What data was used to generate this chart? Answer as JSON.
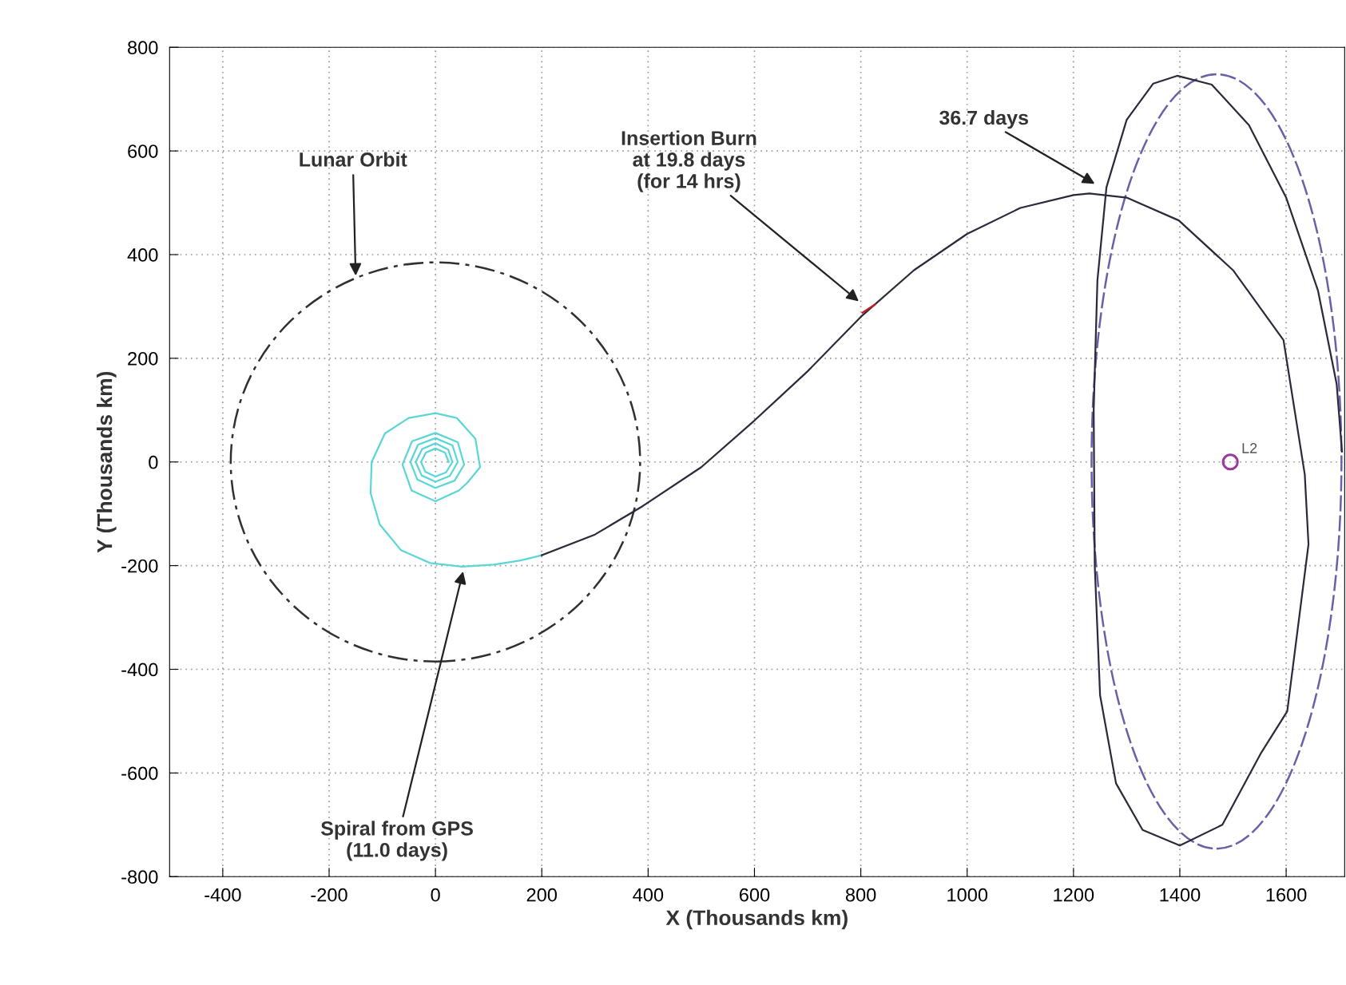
{
  "chart_data": {
    "type": "line",
    "xlabel": "X (Thousands km)",
    "ylabel": "Y (Thousands km)",
    "xlim": [
      -500,
      1710
    ],
    "ylim": [
      -800,
      800
    ],
    "xticks": [
      -400,
      -200,
      0,
      200,
      400,
      600,
      800,
      1000,
      1200,
      1400,
      1600
    ],
    "yticks": [
      -800,
      -600,
      -400,
      -200,
      0,
      200,
      400,
      600,
      800
    ],
    "grid": true,
    "series": [
      {
        "color": "#5ad6d6",
        "line_style": "solid",
        "x": [
          25,
          18,
          0,
          -18,
          -27,
          -19,
          0,
          20,
          32,
          24,
          0,
          -25,
          -37,
          -26,
          0,
          27,
          42,
          32,
          0,
          -33,
          -47,
          -34,
          0,
          36,
          54,
          42,
          0,
          -44,
          -62,
          -45,
          0,
          44,
          60,
          84,
          75,
          40,
          0,
          -50,
          -95,
          -120,
          -122,
          -105,
          -65,
          -10,
          50,
          110,
          160,
          200
        ],
        "values": [
          0,
          18,
          26,
          18,
          0,
          -19,
          -28,
          -20,
          0,
          24,
          36,
          25,
          0,
          -26,
          -38,
          -27,
          0,
          32,
          46,
          33,
          0,
          -34,
          -50,
          -36,
          -5,
          38,
          56,
          40,
          -5,
          -55,
          -76,
          -55,
          -40,
          -10,
          45,
          85,
          94,
          85,
          55,
          0,
          -60,
          -120,
          -170,
          -195,
          -202,
          -198,
          -190,
          -180
        ]
      },
      {
        "color": "#2a2a3a",
        "line_style": "solid",
        "x": [
          200,
          300,
          390,
          500,
          600,
          700,
          800,
          900,
          1000,
          1100,
          1200,
          1230,
          1300,
          1398,
          1500,
          1595,
          1635,
          1642,
          1602,
          1553,
          1480,
          1400,
          1330,
          1280,
          1250,
          1240,
          1238,
          1245,
          1262,
          1300,
          1350,
          1395,
          1460,
          1530,
          1600,
          1660,
          1695,
          1705
        ],
        "values": [
          -180,
          -140,
          -85,
          -10,
          80,
          175,
          280,
          370,
          440,
          490,
          515,
          518,
          510,
          466,
          370,
          235,
          -24,
          -159,
          -481,
          -561,
          -700,
          -740,
          -710,
          -620,
          -450,
          -200,
          100,
          350,
          530,
          660,
          730,
          745,
          728,
          650,
          510,
          330,
          150,
          20
        ]
      },
      {
        "color": "#c02020",
        "line_style": "solid",
        "x": [
          803,
          827
        ],
        "values": [
          288,
          304
        ]
      },
      {
        "type": "scatter",
        "name": "L2",
        "color": "#9a3a9a",
        "marker": "circle",
        "x": [
          1495
        ],
        "values": [
          0
        ]
      }
    ],
    "annotations": [
      "Lunar Orbit",
      {
        "text": "Spiral from GPS\n(11.0 days)",
        "x": 53,
        "y": -207
      },
      "Insertion Burn\nat 19.8 days\n(for 14 hrs)",
      "36.7 days"
    ]
  }
}
